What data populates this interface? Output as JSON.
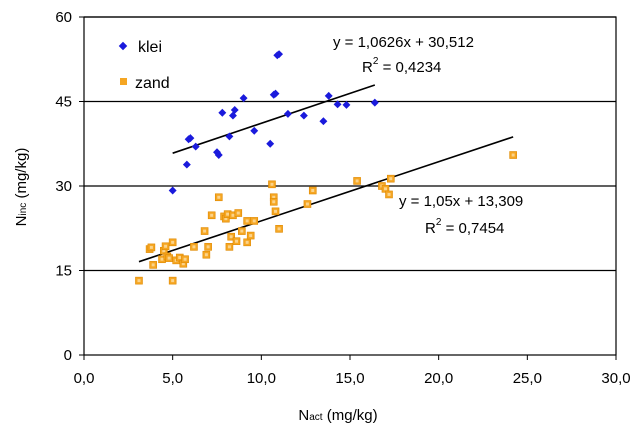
{
  "chart_data": {
    "type": "scatter",
    "xlabel_main": "N",
    "xlabel_sub": "act",
    "xlabel_unit": " (mg/kg)",
    "ylabel_main": "N",
    "ylabel_sub": "inc",
    "ylabel_unit": " (mg/kg)",
    "xlim": [
      0,
      30
    ],
    "ylim": [
      0,
      60
    ],
    "x_ticks": [
      0,
      5,
      10,
      15,
      20,
      25,
      30
    ],
    "x_tick_labels": [
      "0,0",
      "5,0",
      "10,0",
      "15,0",
      "20,0",
      "25,0",
      "30,0"
    ],
    "y_ticks": [
      0,
      15,
      30,
      45,
      60
    ],
    "y_tick_labels": [
      "0",
      "15",
      "30",
      "45",
      "60"
    ],
    "gridlines": "horizontal",
    "legend_position": "top-left",
    "series": [
      {
        "name": "klei",
        "marker": "diamond",
        "color": "#1a1adc",
        "points": [
          [
            5.0,
            29.2
          ],
          [
            5.8,
            33.8
          ],
          [
            5.9,
            38.3
          ],
          [
            6.0,
            38.5
          ],
          [
            6.3,
            37.0
          ],
          [
            7.5,
            36.0
          ],
          [
            7.6,
            35.5
          ],
          [
            7.8,
            43.0
          ],
          [
            8.2,
            38.8
          ],
          [
            8.4,
            42.5
          ],
          [
            8.5,
            43.5
          ],
          [
            9.0,
            45.6
          ],
          [
            9.6,
            39.8
          ],
          [
            10.5,
            37.5
          ],
          [
            10.7,
            46.2
          ],
          [
            10.8,
            46.4
          ],
          [
            10.9,
            53.2
          ],
          [
            11.0,
            53.4
          ],
          [
            11.5,
            42.8
          ],
          [
            12.4,
            42.5
          ],
          [
            13.5,
            41.5
          ],
          [
            13.8,
            46.0
          ],
          [
            14.3,
            44.5
          ],
          [
            14.8,
            44.4
          ],
          [
            16.4,
            44.8
          ]
        ],
        "trendline": {
          "slope": 1.0626,
          "intercept": 30.512,
          "x_range": [
            5.0,
            16.4
          ],
          "equation": "y = 1,0626x + 30,512",
          "r2_prefix": "R",
          "r2_sup": "2",
          "r2_value": " = 0,4234"
        }
      },
      {
        "name": "zand",
        "marker": "square",
        "color": "#f5a623",
        "points": [
          [
            3.1,
            13.2
          ],
          [
            3.7,
            18.8
          ],
          [
            3.8,
            19.1
          ],
          [
            3.9,
            16.0
          ],
          [
            4.4,
            17.0
          ],
          [
            4.5,
            18.5
          ],
          [
            4.6,
            19.3
          ],
          [
            4.7,
            17.5
          ],
          [
            4.8,
            17.2
          ],
          [
            5.0,
            13.2
          ],
          [
            5.0,
            20.0
          ],
          [
            5.2,
            16.8
          ],
          [
            5.4,
            17.3
          ],
          [
            5.6,
            16.2
          ],
          [
            5.7,
            17.0
          ],
          [
            6.2,
            19.2
          ],
          [
            6.8,
            22.0
          ],
          [
            6.9,
            17.8
          ],
          [
            7.0,
            19.2
          ],
          [
            7.2,
            24.8
          ],
          [
            7.6,
            28.0
          ],
          [
            7.9,
            24.6
          ],
          [
            8.0,
            24.2
          ],
          [
            8.1,
            25.0
          ],
          [
            8.2,
            19.2
          ],
          [
            8.3,
            21.0
          ],
          [
            8.4,
            24.8
          ],
          [
            8.6,
            20.2
          ],
          [
            8.7,
            25.2
          ],
          [
            8.9,
            22.0
          ],
          [
            9.2,
            23.8
          ],
          [
            9.2,
            20.0
          ],
          [
            9.4,
            21.2
          ],
          [
            9.6,
            23.8
          ],
          [
            10.6,
            30.3
          ],
          [
            10.7,
            28.0
          ],
          [
            10.7,
            27.2
          ],
          [
            10.8,
            25.5
          ],
          [
            11.0,
            22.4
          ],
          [
            12.6,
            26.8
          ],
          [
            12.9,
            29.2
          ],
          [
            15.4,
            30.9
          ],
          [
            16.8,
            30.0
          ],
          [
            17.0,
            29.5
          ],
          [
            17.2,
            28.5
          ],
          [
            17.3,
            31.3
          ],
          [
            24.2,
            35.5
          ]
        ],
        "trendline": {
          "slope": 1.05,
          "intercept": 13.309,
          "x_range": [
            3.1,
            24.2
          ],
          "equation": "y = 1,05x + 13,309",
          "r2_prefix": "R",
          "r2_sup": "2",
          "r2_value": " = 0,7454"
        }
      }
    ]
  }
}
